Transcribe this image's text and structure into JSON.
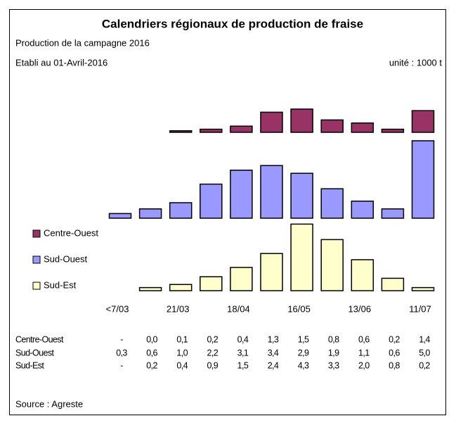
{
  "chart_data": {
    "type": "bar",
    "title": "Calendriers régionaux de production de fraise",
    "subtitle": "Production de la campagne 2016",
    "annotations": [
      "Etabli au 01-Avril-2016",
      "unité : 1000 t",
      "Source : Agreste"
    ],
    "categories": [
      "<7/03",
      null,
      "21/03",
      null,
      "18/04",
      null,
      "16/05",
      null,
      "13/06",
      null,
      "11/07"
    ],
    "series": [
      {
        "name": "Centre-Ouest",
        "color": "#993366",
        "values": [
          null,
          0.0,
          0.1,
          0.2,
          0.4,
          1.3,
          1.5,
          0.8,
          0.6,
          0.2,
          1.4
        ],
        "value_labels": [
          "-",
          "0,0",
          "0,1",
          "0,2",
          "0,4",
          "1,3",
          "1,5",
          "0,8",
          "0,6",
          "0,2",
          "1,4"
        ]
      },
      {
        "name": "Sud-Ouest",
        "color": "#9999ff",
        "values": [
          0.3,
          0.6,
          1.0,
          2.2,
          3.1,
          3.4,
          2.9,
          1.9,
          1.1,
          0.6,
          5.0
        ],
        "value_labels": [
          "0,3",
          "0,6",
          "1,0",
          "2,2",
          "3,1",
          "3,4",
          "2,9",
          "1,9",
          "1,1",
          "0,6",
          "5,0"
        ]
      },
      {
        "name": "Sud-Est",
        "color": "#ffffcc",
        "values": [
          null,
          0.2,
          0.4,
          0.9,
          1.5,
          2.4,
          4.3,
          3.3,
          2.0,
          0.8,
          0.2
        ],
        "value_labels": [
          "-",
          "0,2",
          "0,4",
          "0,9",
          "1,5",
          "2,4",
          "4,3",
          "3,3",
          "2,0",
          "0,8",
          "0,2"
        ]
      }
    ]
  }
}
